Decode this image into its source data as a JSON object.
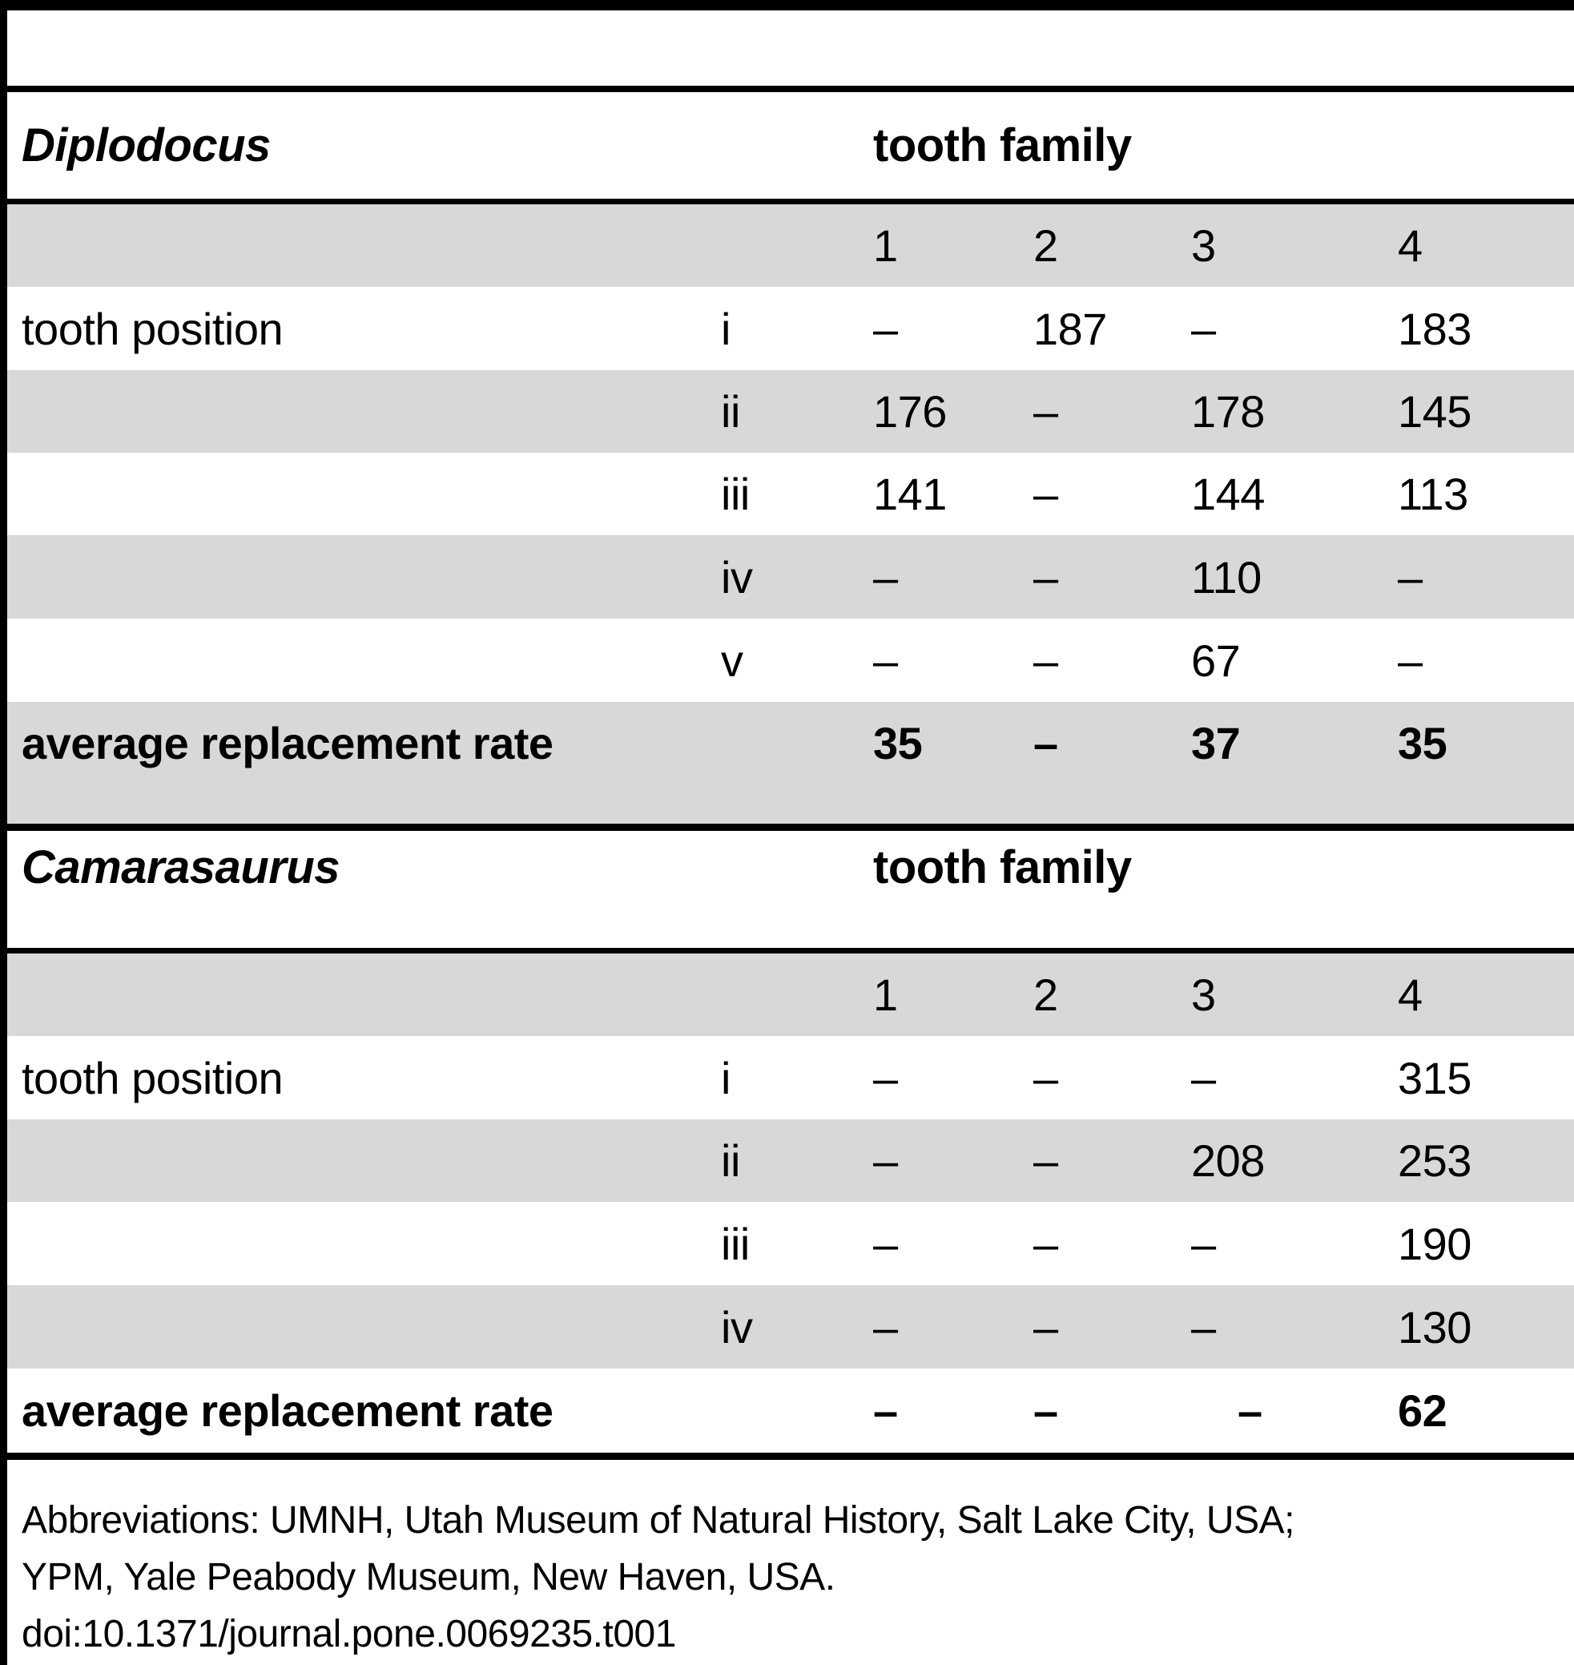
{
  "table": {
    "sections": [
      {
        "species": "Diplodocus",
        "header_label": "tooth family",
        "group_label": "tooth position",
        "family_columns": [
          "1",
          "2",
          "3",
          "4"
        ],
        "rows": [
          {
            "position": "i",
            "values": [
              "–",
              "187",
              "–",
              "183"
            ]
          },
          {
            "position": "ii",
            "values": [
              "176",
              "–",
              "178",
              "145"
            ]
          },
          {
            "position": "iii",
            "values": [
              "141",
              "–",
              "144",
              "113"
            ]
          },
          {
            "position": "iv",
            "values": [
              "–",
              "–",
              "110",
              "–"
            ]
          },
          {
            "position": "v",
            "values": [
              "–",
              "–",
              "67",
              "–"
            ]
          }
        ],
        "average": {
          "label": "average replacement rate",
          "values": [
            "35",
            "–",
            "37",
            "35"
          ]
        }
      },
      {
        "species": "Camarasaurus",
        "header_label": "tooth family",
        "group_label": "tooth position",
        "family_columns": [
          "1",
          "2",
          "3",
          "4"
        ],
        "rows": [
          {
            "position": "i",
            "values": [
              "–",
              "–",
              "–",
              "315"
            ]
          },
          {
            "position": "ii",
            "values": [
              "–",
              "–",
              "208",
              "253"
            ]
          },
          {
            "position": "iii",
            "values": [
              "–",
              "–",
              "–",
              "190"
            ]
          },
          {
            "position": "iv",
            "values": [
              "–",
              "–",
              "–",
              "130"
            ]
          }
        ],
        "average": {
          "label": "average replacement rate",
          "values": [
            "–",
            "–",
            "–",
            "62"
          ]
        }
      }
    ],
    "footnote_lines": [
      "Abbreviations: UMNH, Utah Museum of Natural History, Salt Lake City, USA;",
      "YPM, Yale Peabody Museum, New Haven, USA.",
      "doi:10.1371/journal.pone.0069235.t001"
    ]
  },
  "colors": {
    "row_shade": "#d8d8d8",
    "rule": "#000000",
    "text": "#000000"
  }
}
